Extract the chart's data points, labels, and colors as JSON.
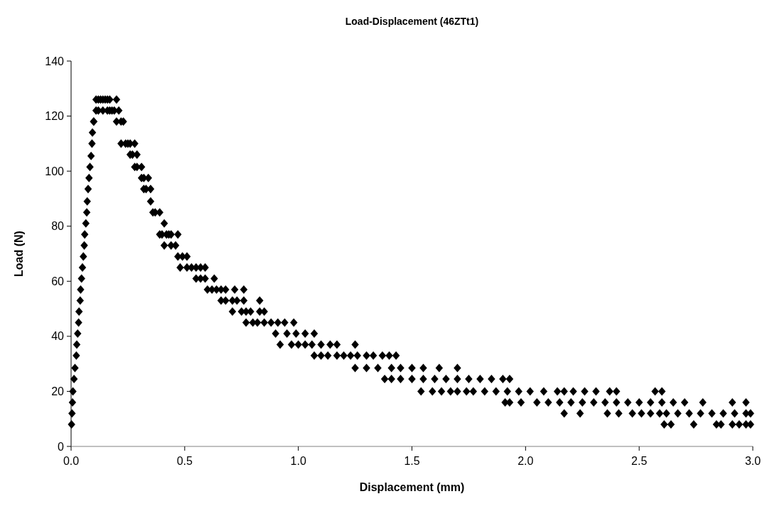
{
  "chart_data": {
    "type": "scatter",
    "title": "Load-Displacement (46ZTt1)",
    "xlabel": "Displacement (mm)",
    "ylabel": "Load (N)",
    "xlim": [
      0,
      3
    ],
    "xticks": [
      {
        "value": 0,
        "label": "0.0"
      },
      {
        "value": 0.5,
        "label": "0.5"
      },
      {
        "value": 1,
        "label": "1.0"
      },
      {
        "value": 1.5,
        "label": "1.5"
      },
      {
        "value": 2,
        "label": "2.0"
      },
      {
        "value": 2.5,
        "label": "2.5"
      },
      {
        "value": 3,
        "label": "3.0"
      }
    ],
    "ylim": [
      0,
      140
    ],
    "yticks": [
      0,
      20,
      40,
      60,
      80,
      100,
      120,
      140
    ],
    "grid": false,
    "marker": "diamond",
    "series": [
      {
        "color": "#000000",
        "x": [
          0.002,
          0.004,
          0.006,
          0.008,
          0.013,
          0.017,
          0.023,
          0.025,
          0.029,
          0.033,
          0.035,
          0.04,
          0.042,
          0.046,
          0.05,
          0.054,
          0.058,
          0.06,
          0.065,
          0.069,
          0.071,
          0.075,
          0.079,
          0.083,
          0.088,
          0.092,
          0.094,
          0.099,
          0.11,
          0.12,
          0.13,
          0.14,
          0.15,
          0.16,
          0.17,
          0.2,
          0.11,
          0.12,
          0.14,
          0.16,
          0.17,
          0.18,
          0.19,
          0.21,
          0.1,
          0.2,
          0.22,
          0.23,
          0.22,
          0.24,
          0.25,
          0.26,
          0.28,
          0.26,
          0.27,
          0.29,
          0.28,
          0.29,
          0.31,
          0.31,
          0.32,
          0.34,
          0.32,
          0.33,
          0.35,
          0.35,
          0.36,
          0.37,
          0.39,
          0.41,
          0.39,
          0.4,
          0.42,
          0.43,
          0.44,
          0.47,
          0.41,
          0.44,
          0.46,
          0.47,
          0.49,
          0.51,
          0.48,
          0.51,
          0.53,
          0.55,
          0.57,
          0.59,
          0.55,
          0.57,
          0.59,
          0.63,
          0.6,
          0.62,
          0.64,
          0.66,
          0.68,
          0.72,
          0.76,
          0.66,
          0.68,
          0.71,
          0.73,
          0.76,
          0.83,
          0.71,
          0.75,
          0.77,
          0.79,
          0.83,
          0.85,
          0.77,
          0.8,
          0.82,
          0.85,
          0.88,
          0.91,
          0.94,
          0.98,
          0.9,
          0.95,
          0.99,
          1.03,
          1.07,
          0.92,
          0.97,
          1.0,
          1.03,
          1.06,
          1.1,
          1.14,
          1.17,
          1.25,
          1.07,
          1.1,
          1.13,
          1.17,
          1.2,
          1.23,
          1.26,
          1.3,
          1.33,
          1.37,
          1.4,
          1.43,
          1.25,
          1.3,
          1.35,
          1.41,
          1.45,
          1.5,
          1.55,
          1.62,
          1.7,
          1.38,
          1.41,
          1.45,
          1.5,
          1.55,
          1.6,
          1.65,
          1.7,
          1.75,
          1.8,
          1.85,
          1.9,
          1.93,
          1.54,
          1.59,
          1.63,
          1.67,
          1.7,
          1.74,
          1.77,
          1.82,
          1.87,
          1.92,
          1.97,
          2.02,
          2.08,
          2.14,
          2.17,
          2.21,
          2.26,
          2.31,
          2.37,
          2.4,
          2.57,
          2.6,
          1.91,
          1.93,
          1.98,
          2.05,
          2.1,
          2.15,
          2.2,
          2.25,
          2.3,
          2.35,
          2.4,
          2.45,
          2.5,
          2.55,
          2.6,
          2.65,
          2.7,
          2.78,
          2.91,
          2.97,
          2.17,
          2.24,
          2.36,
          2.41,
          2.47,
          2.51,
          2.55,
          2.59,
          2.62,
          2.67,
          2.72,
          2.77,
          2.82,
          2.87,
          2.92,
          2.97,
          2.99,
          2.61,
          2.64,
          2.74,
          2.84,
          2.86,
          2.91,
          2.94,
          2.97,
          2.99
        ],
        "values": [
          8,
          12,
          16,
          20,
          24.5,
          28.5,
          33,
          37,
          41,
          45,
          49,
          53,
          57,
          61,
          65,
          69,
          73,
          77,
          81,
          85,
          89,
          93.5,
          97.5,
          101.5,
          105.5,
          110,
          114,
          118,
          126,
          126,
          126,
          126,
          126,
          126,
          126,
          126,
          122,
          122,
          122,
          122,
          122,
          122,
          122,
          122,
          118,
          118,
          118,
          118,
          110,
          110,
          110,
          110,
          110,
          106,
          106,
          106,
          101.5,
          101.5,
          101.5,
          97.5,
          97.5,
          97.5,
          93.5,
          93.5,
          93.5,
          89,
          85,
          85,
          85,
          81,
          77,
          77,
          77,
          77,
          77,
          77,
          73,
          73,
          73,
          69,
          69,
          69,
          65,
          65,
          65,
          65,
          65,
          65,
          61,
          61,
          61,
          61,
          57,
          57,
          57,
          57,
          57,
          57,
          57,
          53,
          53,
          53,
          53,
          53,
          53,
          49,
          49,
          49,
          49,
          49,
          49,
          45,
          45,
          45,
          45,
          45,
          45,
          45,
          45,
          41,
          41,
          41,
          41,
          41,
          37,
          37,
          37,
          37,
          37,
          37,
          37,
          37,
          37,
          33,
          33,
          33,
          33,
          33,
          33,
          33,
          33,
          33,
          33,
          33,
          33,
          28.5,
          28.5,
          28.5,
          28.5,
          28.5,
          28.5,
          28.5,
          28.5,
          28.5,
          24.5,
          24.5,
          24.5,
          24.5,
          24.5,
          24.5,
          24.5,
          24.5,
          24.5,
          24.5,
          24.5,
          24.5,
          24.5,
          20,
          20,
          20,
          20,
          20,
          20,
          20,
          20,
          20,
          20,
          20,
          20,
          20,
          20,
          20,
          20,
          20,
          20,
          20,
          20,
          20,
          20,
          16,
          16,
          16,
          16,
          16,
          16,
          16,
          16,
          16,
          16,
          16,
          16,
          16,
          16,
          16,
          16,
          16,
          16,
          16,
          16,
          12,
          12,
          12,
          12,
          12,
          12,
          12,
          12,
          12,
          12,
          12,
          12,
          12,
          12,
          12,
          12,
          12,
          8,
          8,
          8,
          8,
          8,
          8,
          8,
          8,
          8
        ]
      }
    ]
  }
}
